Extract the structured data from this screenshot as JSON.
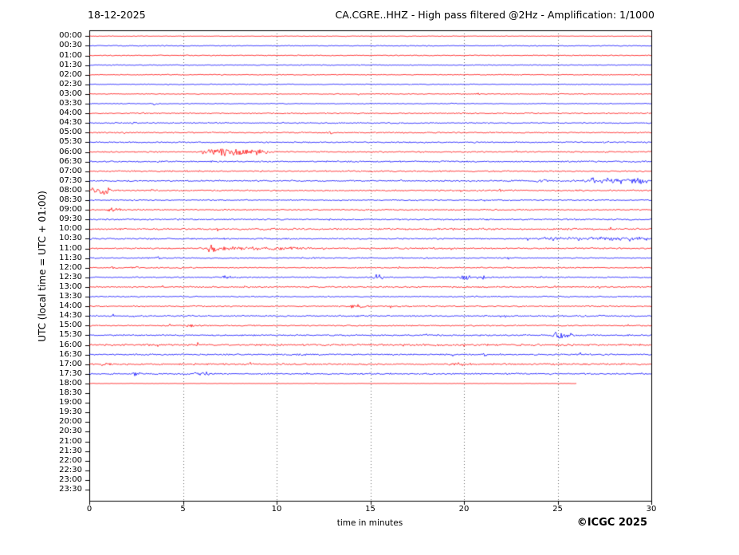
{
  "chart_data": {
    "type": "line",
    "subtype": "helicorder-seismogram",
    "title_left": "18-12-2025",
    "title_right": "CA.CGRE..HHZ - High pass filtered @2Hz - Amplification: 1/1000",
    "xlabel": "time in minutes",
    "ylabel": "UTC (local time = UTC + 01:00)",
    "copyright": "©ICGC 2025",
    "xlim": [
      0,
      30
    ],
    "x_ticks": [
      0,
      5,
      10,
      15,
      20,
      25,
      30
    ],
    "grid_minutes": [
      5,
      10,
      15,
      20,
      25
    ],
    "grid_style": "dotted",
    "axis_color": "#000000",
    "grid_color": "#444444",
    "trace_colors": {
      "hour": "#ff0000",
      "half_hour": "#0000ff"
    },
    "rows": [
      {
        "label": "00:00",
        "color": "red",
        "noise": 0.3,
        "end": 30,
        "events": []
      },
      {
        "label": "00:30",
        "color": "blue",
        "noise": 0.45,
        "end": 30,
        "events": []
      },
      {
        "label": "01:00",
        "color": "red",
        "noise": 0.45,
        "end": 30,
        "events": []
      },
      {
        "label": "01:30",
        "color": "blue",
        "noise": 0.5,
        "end": 30,
        "events": []
      },
      {
        "label": "02:00",
        "color": "red",
        "noise": 0.45,
        "end": 30,
        "events": []
      },
      {
        "label": "02:30",
        "color": "blue",
        "noise": 0.45,
        "end": 30,
        "events": []
      },
      {
        "label": "03:00",
        "color": "red",
        "noise": 0.4,
        "end": 30,
        "events": [
          [
            13.2,
            13.5,
            1.4,
            "spindle"
          ],
          [
            20.6,
            20.9,
            1.4,
            "spindle"
          ]
        ]
      },
      {
        "label": "03:30",
        "color": "blue",
        "noise": 0.4,
        "end": 30,
        "events": [
          [
            3.4,
            3.7,
            1.4,
            "spindle"
          ],
          [
            19.2,
            19.5,
            1.2,
            "spindle"
          ]
        ]
      },
      {
        "label": "04:00",
        "color": "red",
        "noise": 0.55,
        "end": 30,
        "events": []
      },
      {
        "label": "04:30",
        "color": "blue",
        "noise": 0.55,
        "end": 30,
        "events": [
          [
            2.2,
            2.5,
            1.2,
            "spindle"
          ]
        ]
      },
      {
        "label": "05:00",
        "color": "red",
        "noise": 0.6,
        "end": 30,
        "events": [
          [
            12.7,
            13.0,
            1.3,
            "spindle"
          ]
        ]
      },
      {
        "label": "05:30",
        "color": "blue",
        "noise": 0.6,
        "end": 30,
        "events": [
          [
            27.4,
            27.8,
            1.3,
            "spindle"
          ]
        ]
      },
      {
        "label": "06:00",
        "color": "red",
        "noise": 0.65,
        "end": 30,
        "events": [
          [
            5.9,
            9.6,
            2.6,
            "band"
          ]
        ]
      },
      {
        "label": "06:30",
        "color": "blue",
        "noise": 0.7,
        "end": 30,
        "events": []
      },
      {
        "label": "07:00",
        "color": "red",
        "noise": 0.7,
        "end": 30,
        "events": []
      },
      {
        "label": "07:30",
        "color": "blue",
        "noise": 0.7,
        "end": 30,
        "events": [
          [
            23.7,
            24.6,
            1.5,
            "spindle"
          ],
          [
            26.3,
            30,
            2.1,
            "band"
          ]
        ]
      },
      {
        "label": "08:00",
        "color": "red",
        "noise": 0.7,
        "end": 30,
        "events": [
          [
            0,
            1.3,
            2.5,
            "band"
          ],
          [
            21.8,
            22.2,
            1.1,
            "spindle"
          ]
        ]
      },
      {
        "label": "08:30",
        "color": "blue",
        "noise": 0.55,
        "end": 30,
        "events": []
      },
      {
        "label": "09:00",
        "color": "red",
        "noise": 0.6,
        "end": 30,
        "events": [
          [
            0.9,
            1.8,
            1.7,
            "spindle"
          ]
        ]
      },
      {
        "label": "09:30",
        "color": "blue",
        "noise": 0.7,
        "end": 30,
        "events": []
      },
      {
        "label": "10:00",
        "color": "red",
        "noise": 0.85,
        "end": 30,
        "events": []
      },
      {
        "label": "10:30",
        "color": "blue",
        "noise": 0.7,
        "end": 30,
        "events": [
          [
            24,
            30,
            1.0,
            "band"
          ]
        ]
      },
      {
        "label": "11:00",
        "color": "red",
        "noise": 0.7,
        "end": 30,
        "events": [
          [
            6.2,
            7.3,
            3.4,
            "spindle"
          ],
          [
            7.0,
            12.5,
            1.1,
            "spindle"
          ]
        ]
      },
      {
        "label": "11:30",
        "color": "blue",
        "noise": 0.6,
        "end": 30,
        "events": [
          [
            3.5,
            4.0,
            1.3,
            "spindle"
          ],
          [
            22.3,
            22.6,
            1.2,
            "spindle"
          ]
        ]
      },
      {
        "label": "12:00",
        "color": "red",
        "noise": 0.6,
        "end": 30,
        "events": [
          [
            1.1,
            1.4,
            1.4,
            "spindle"
          ],
          [
            2.4,
            2.7,
            1.2,
            "spindle"
          ]
        ]
      },
      {
        "label": "12:30",
        "color": "blue",
        "noise": 0.6,
        "end": 30,
        "events": [
          [
            7.1,
            7.7,
            1.5,
            "spindle"
          ],
          [
            15.1,
            15.8,
            2.1,
            "band"
          ],
          [
            19.7,
            20.6,
            2.0,
            "band"
          ],
          [
            20.6,
            21.6,
            1.3,
            "band"
          ]
        ]
      },
      {
        "label": "13:00",
        "color": "red",
        "noise": 0.7,
        "end": 30,
        "events": []
      },
      {
        "label": "13:30",
        "color": "blue",
        "noise": 0.55,
        "end": 30,
        "events": []
      },
      {
        "label": "14:00",
        "color": "red",
        "noise": 0.6,
        "end": 30,
        "events": [
          [
            13.9,
            15.1,
            2.3,
            "spindle"
          ]
        ]
      },
      {
        "label": "14:30",
        "color": "blue",
        "noise": 0.7,
        "end": 30,
        "events": []
      },
      {
        "label": "15:00",
        "color": "red",
        "noise": 0.6,
        "end": 30,
        "events": [
          [
            5.2,
            5.6,
            1.4,
            "spindle"
          ]
        ]
      },
      {
        "label": "15:30",
        "color": "blue",
        "noise": 0.7,
        "end": 30,
        "events": [
          [
            24.7,
            26.1,
            2.5,
            "band"
          ]
        ]
      },
      {
        "label": "16:00",
        "color": "red",
        "noise": 0.9,
        "end": 30,
        "events": []
      },
      {
        "label": "16:30",
        "color": "blue",
        "noise": 0.7,
        "end": 30,
        "events": [
          [
            11.2,
            11.6,
            1.4,
            "spindle"
          ],
          [
            20.9,
            21.3,
            1.5,
            "spindle"
          ]
        ]
      },
      {
        "label": "17:00",
        "color": "red",
        "noise": 0.75,
        "end": 30,
        "events": [
          [
            0.4,
            1.3,
            1.6,
            "band"
          ],
          [
            8.5,
            8.8,
            1.2,
            "spindle"
          ],
          [
            19.2,
            20.1,
            1.7,
            "spindle"
          ]
        ]
      },
      {
        "label": "17:30",
        "color": "blue",
        "noise": 0.7,
        "end": 30,
        "events": [
          [
            2.3,
            2.8,
            1.3,
            "spindle"
          ],
          [
            5.4,
            6.6,
            1.3,
            "band"
          ]
        ]
      },
      {
        "label": "18:00",
        "color": "red",
        "noise": 0.18,
        "end": 26,
        "events": []
      },
      {
        "label": "18:30",
        "color": "blue",
        "noise": 0,
        "end": null,
        "events": []
      },
      {
        "label": "19:00",
        "color": "red",
        "noise": 0,
        "end": null,
        "events": []
      },
      {
        "label": "19:30",
        "color": "blue",
        "noise": 0,
        "end": null,
        "events": []
      },
      {
        "label": "20:00",
        "color": "red",
        "noise": 0,
        "end": null,
        "events": []
      },
      {
        "label": "20:30",
        "color": "blue",
        "noise": 0,
        "end": null,
        "events": []
      },
      {
        "label": "21:00",
        "color": "red",
        "noise": 0,
        "end": null,
        "events": []
      },
      {
        "label": "21:30",
        "color": "blue",
        "noise": 0,
        "end": null,
        "events": []
      },
      {
        "label": "22:00",
        "color": "red",
        "noise": 0,
        "end": null,
        "events": []
      },
      {
        "label": "22:30",
        "color": "blue",
        "noise": 0,
        "end": null,
        "events": []
      },
      {
        "label": "23:00",
        "color": "red",
        "noise": 0,
        "end": null,
        "events": []
      },
      {
        "label": "23:30",
        "color": "blue",
        "noise": 0,
        "end": null,
        "events": []
      }
    ]
  }
}
